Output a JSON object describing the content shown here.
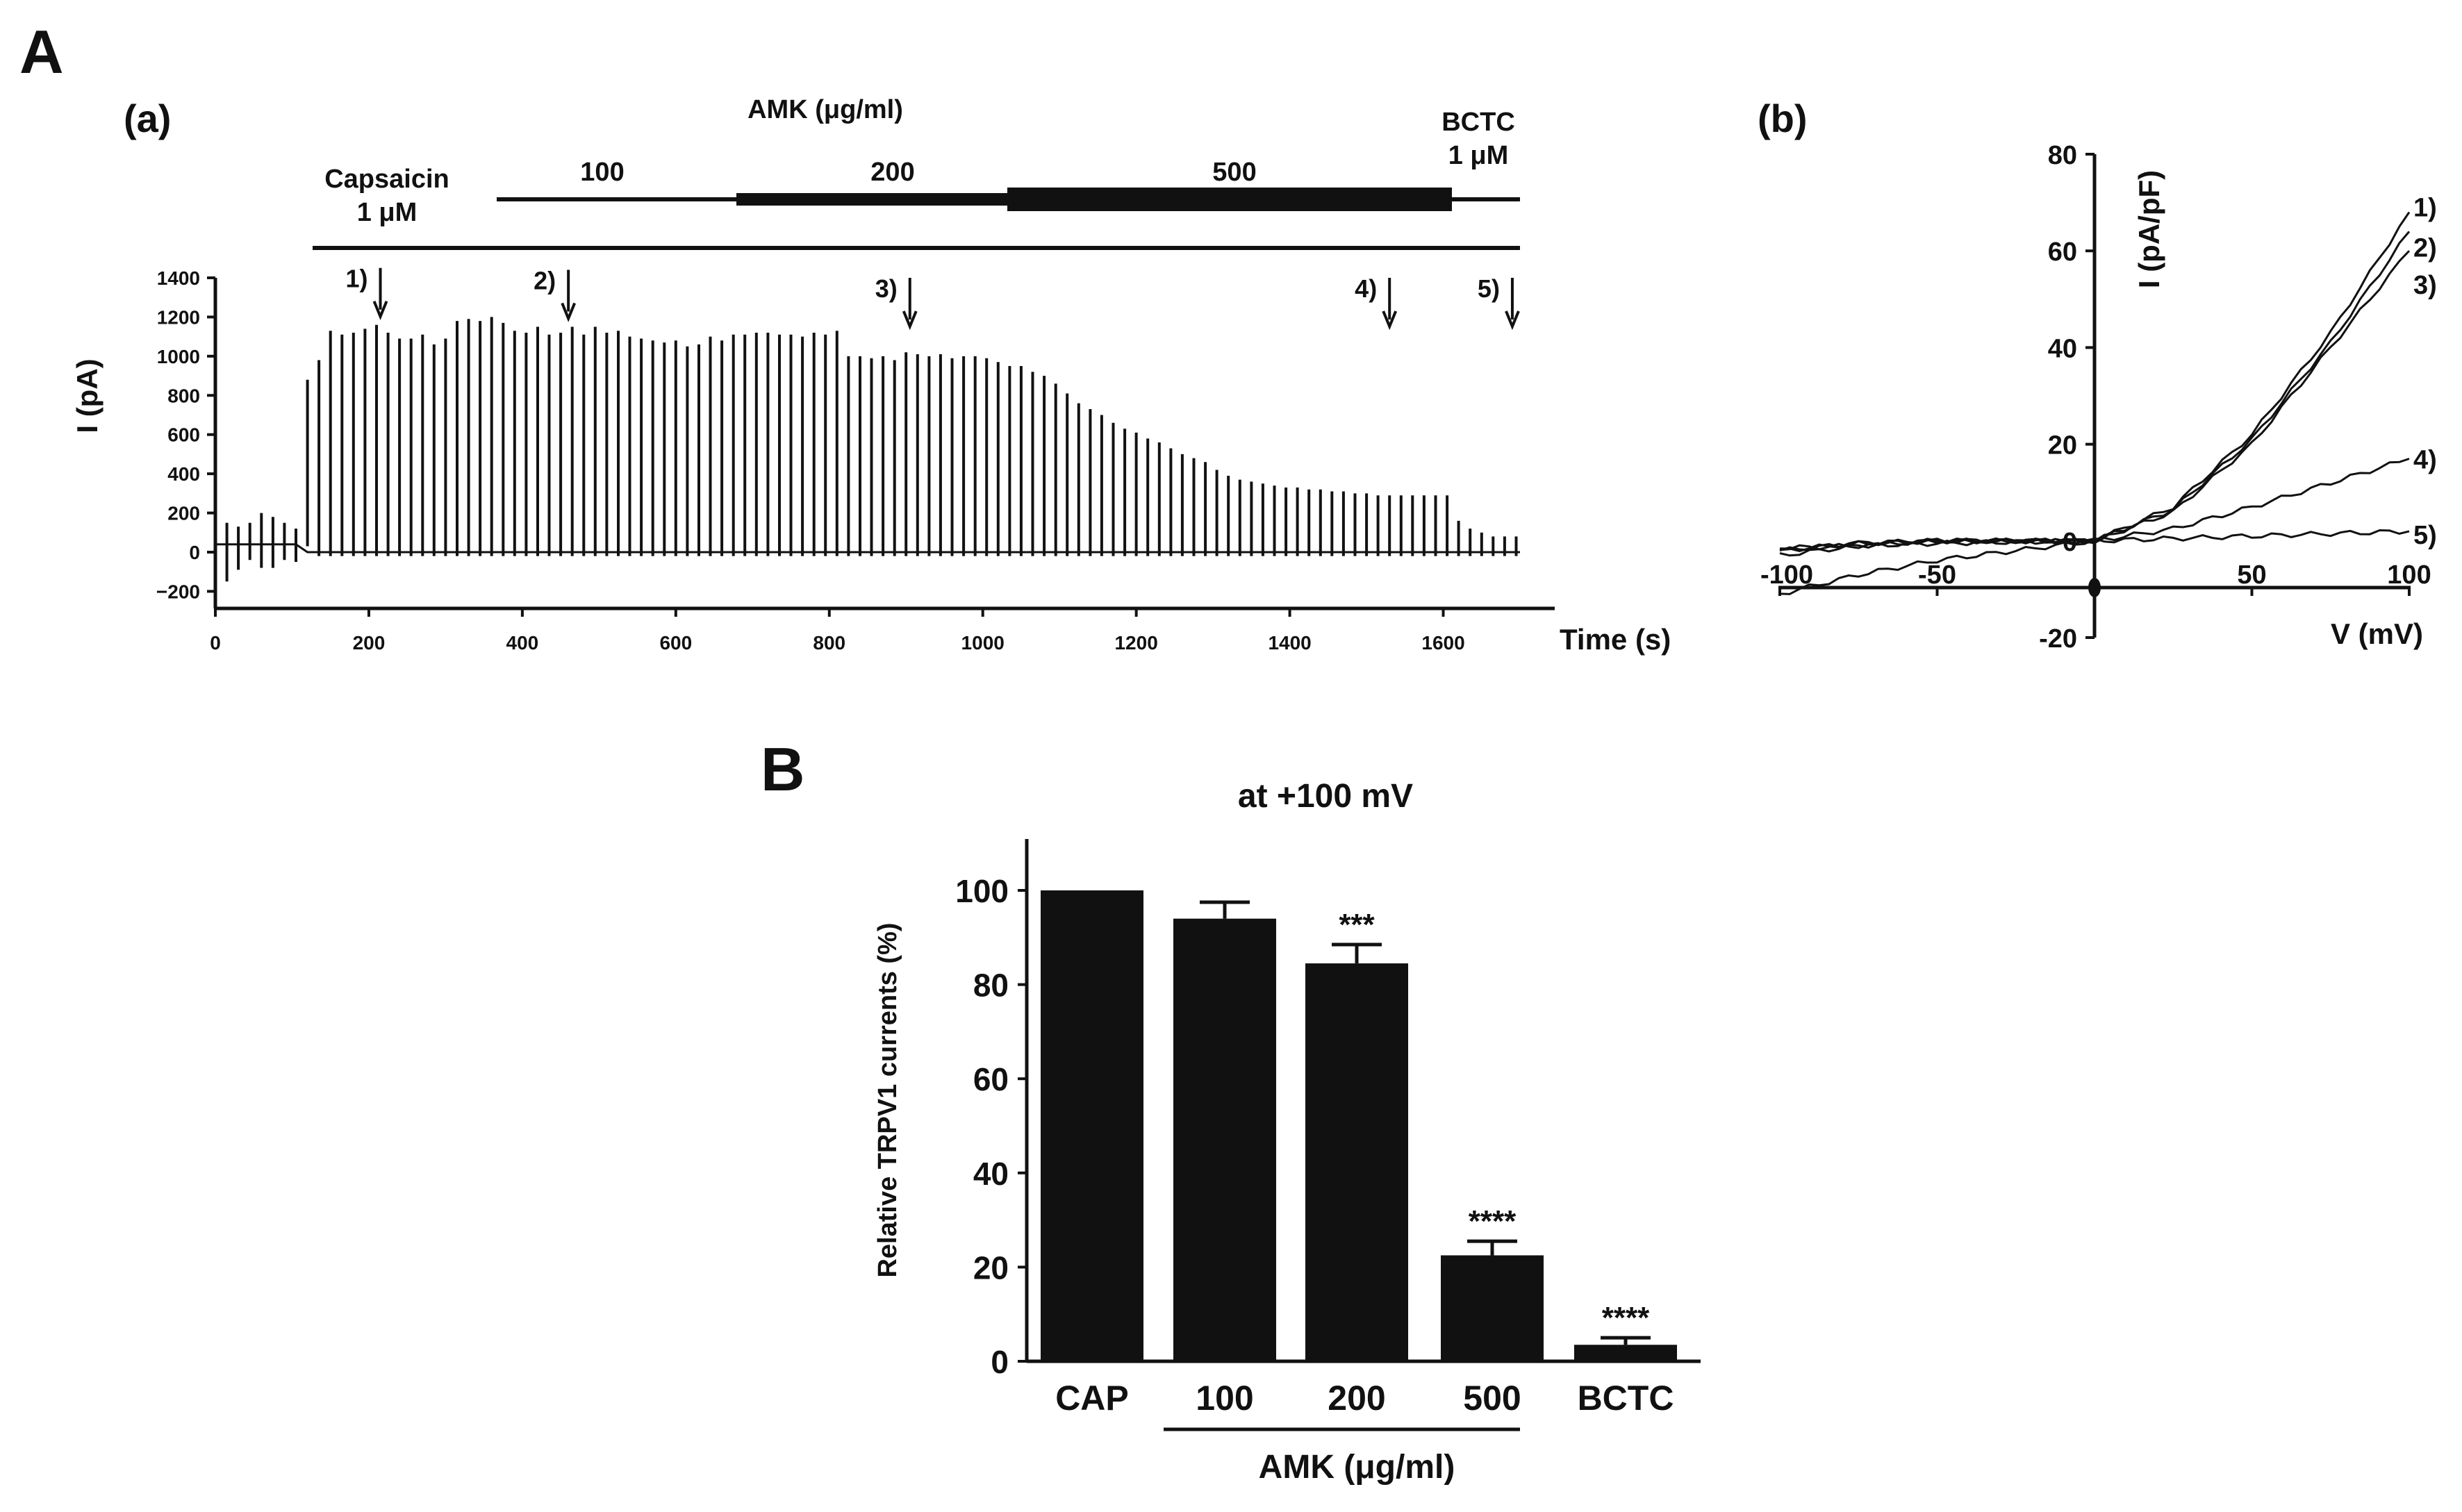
{
  "figure": {
    "panel_a_label": "A",
    "panel_b_label": "B"
  },
  "colors": {
    "ink": "#111111",
    "background": "#ffffff"
  },
  "chart_data": [
    {
      "id": "trace",
      "type": "line",
      "panel": "(a)",
      "xlabel": "Time (s)",
      "ylabel": "I (pA)",
      "xlim": [
        0,
        1750
      ],
      "ylim": [
        -300,
        1400
      ],
      "x_ticks": [
        0,
        200,
        400,
        600,
        800,
        1000,
        1200,
        1400,
        1600
      ],
      "y_ticks": [
        1400,
        1200,
        1000,
        800,
        600,
        400,
        200,
        0,
        -200
      ],
      "y_tick_labels": [
        "1400",
        "1200",
        "1000",
        "800",
        "600",
        "400",
        "200",
        "0",
        "−200"
      ],
      "treatments": {
        "capsaicin": {
          "label": "Capsaicin",
          "conc": "1 μM",
          "start": 125,
          "end": 1700
        },
        "amk_title": "AMK (μg/ml)",
        "amk": [
          {
            "label": "100",
            "start": 370,
            "end": 680
          },
          {
            "label": "200",
            "start": 680,
            "end": 1040
          },
          {
            "label": "500",
            "start": 1040,
            "end": 1615
          }
        ],
        "bctc": {
          "label": "BCTC",
          "conc": "1 μM",
          "start": 1615,
          "end": 1700
        }
      },
      "markers": [
        {
          "label": "1)",
          "time": 215
        },
        {
          "label": "2)",
          "time": 460
        },
        {
          "label": "3)",
          "time": 905
        },
        {
          "label": "4)",
          "time": 1530
        },
        {
          "label": "5)",
          "time": 1690
        }
      ],
      "series": [
        {
          "name": "ramp current peaks",
          "sample_interval_s": 15,
          "x": [
            0,
            15,
            30,
            45,
            60,
            75,
            90,
            105,
            120,
            135,
            150,
            165,
            180,
            195,
            210,
            225,
            240,
            255,
            270,
            285,
            300,
            315,
            330,
            345,
            360,
            375,
            390,
            405,
            420,
            435,
            450,
            465,
            480,
            495,
            510,
            525,
            540,
            555,
            570,
            585,
            600,
            615,
            630,
            645,
            660,
            675,
            690,
            705,
            720,
            735,
            750,
            765,
            780,
            795,
            810,
            825,
            840,
            855,
            870,
            885,
            900,
            915,
            930,
            945,
            960,
            975,
            990,
            1005,
            1020,
            1035,
            1050,
            1065,
            1080,
            1095,
            1110,
            1125,
            1140,
            1155,
            1170,
            1185,
            1200,
            1215,
            1230,
            1245,
            1260,
            1275,
            1290,
            1305,
            1320,
            1335,
            1350,
            1365,
            1380,
            1395,
            1410,
            1425,
            1440,
            1455,
            1470,
            1485,
            1500,
            1515,
            1530,
            1545,
            1560,
            1575,
            1590,
            1605,
            1620,
            1635,
            1650,
            1665,
            1680,
            1695
          ],
          "max": [
            170,
            150,
            130,
            150,
            200,
            180,
            150,
            120,
            880,
            980,
            1130,
            1110,
            1120,
            1140,
            1160,
            1120,
            1090,
            1090,
            1110,
            1060,
            1090,
            1180,
            1190,
            1180,
            1200,
            1170,
            1130,
            1120,
            1150,
            1110,
            1120,
            1150,
            1110,
            1150,
            1120,
            1130,
            1100,
            1090,
            1080,
            1070,
            1080,
            1050,
            1060,
            1100,
            1080,
            1110,
            1110,
            1120,
            1120,
            1110,
            1110,
            1100,
            1120,
            1110,
            1130,
            1000,
            1000,
            990,
            1000,
            980,
            1020,
            1010,
            1000,
            1010,
            990,
            1000,
            1000,
            990,
            970,
            950,
            950,
            920,
            900,
            860,
            810,
            760,
            730,
            700,
            660,
            630,
            610,
            580,
            560,
            530,
            500,
            480,
            460,
            420,
            390,
            370,
            360,
            350,
            340,
            330,
            330,
            320,
            320,
            310,
            310,
            300,
            300,
            290,
            290,
            290,
            290,
            290,
            290,
            290,
            160,
            120,
            100,
            80,
            80,
            80
          ],
          "min": [
            -50,
            -150,
            -90,
            -40,
            -80,
            -80,
            -40,
            -50,
            30,
            -20,
            -20,
            -20,
            -20,
            -20,
            -20,
            -20,
            -20,
            -20,
            -20,
            -20,
            -20,
            -20,
            -20,
            -20,
            -20,
            -20,
            -20,
            -20,
            -20,
            -20,
            -20,
            -20,
            -20,
            -20,
            -20,
            -20,
            -20,
            -20,
            -20,
            -20,
            -20,
            -20,
            -20,
            -20,
            -20,
            -20,
            -20,
            -20,
            -20,
            -20,
            -20,
            -20,
            -20,
            -20,
            -20,
            -20,
            -20,
            -20,
            -20,
            -20,
            -20,
            -20,
            -20,
            -20,
            -20,
            -20,
            -20,
            -20,
            -20,
            -20,
            -20,
            -20,
            -20,
            -20,
            -20,
            -20,
            -20,
            -20,
            -20,
            -20,
            -20,
            -20,
            -20,
            -20,
            -20,
            -20,
            -20,
            -20,
            -20,
            -20,
            -20,
            -20,
            -20,
            -20,
            -20,
            -20,
            -20,
            -20,
            -20,
            -20,
            -20,
            -20,
            -20,
            -20,
            -20,
            -20,
            -20,
            -20,
            -20,
            -20,
            -20,
            -20,
            -20,
            -20
          ]
        }
      ]
    },
    {
      "id": "iv",
      "type": "line",
      "panel": "(b)",
      "xlabel": "V (mV)",
      "ylabel": "I (pA/pF)",
      "xlim": [
        -100,
        100
      ],
      "ylim": [
        -20,
        80
      ],
      "x_ticks": [
        -100,
        -50,
        50,
        100
      ],
      "x_tick_labels": [
        "-100",
        "-50",
        "50",
        "100"
      ],
      "y_ticks": [
        80,
        60,
        40,
        20,
        0,
        -20
      ],
      "y_tick_labels": [
        "80",
        "60",
        "40",
        "20",
        "0",
        "-20"
      ],
      "series": [
        {
          "name": "1)",
          "x": [
            -100,
            -75,
            -50,
            -25,
            0,
            25,
            50,
            75,
            100
          ],
          "y": [
            -2,
            -0.5,
            0,
            0,
            0,
            7,
            22,
            43,
            68
          ]
        },
        {
          "name": "2)",
          "x": [
            -100,
            -75,
            -50,
            -25,
            0,
            25,
            50,
            75,
            100
          ],
          "y": [
            -2,
            -0.5,
            0,
            0,
            0,
            6.5,
            21,
            41,
            64
          ]
        },
        {
          "name": "3)",
          "x": [
            -100,
            -75,
            -50,
            -25,
            0,
            25,
            50,
            75,
            100
          ],
          "y": [
            -3,
            -1,
            0,
            0,
            0,
            6,
            20,
            40,
            60
          ]
        },
        {
          "name": "4)",
          "x": [
            -100,
            -75,
            -50,
            -25,
            0,
            25,
            50,
            75,
            100
          ],
          "y": [
            -11,
            -7,
            -4,
            -2,
            0,
            2.5,
            7,
            12,
            17
          ]
        },
        {
          "name": "5)",
          "x": [
            -100,
            -75,
            -50,
            -25,
            0,
            25,
            50,
            75,
            100
          ],
          "y": [
            -1.5,
            -1,
            -0.5,
            -0.2,
            0,
            0.5,
            1,
            1.5,
            2
          ]
        }
      ]
    },
    {
      "id": "bars",
      "type": "bar",
      "title": "at +100 mV",
      "ylabel": "Relative TRPV1 currents (%)",
      "xlabel": "AMK (μg/ml)",
      "group_label": "AMK (μg/ml)",
      "categories": [
        "CAP",
        "100",
        "200",
        "500",
        "BCTC"
      ],
      "values": [
        100,
        94,
        84.5,
        22.5,
        3.5
      ],
      "errors": [
        0,
        3.5,
        4,
        3,
        1.5
      ],
      "significance": [
        "",
        "",
        "***",
        "****",
        "****"
      ],
      "ylim": [
        0,
        110
      ],
      "y_ticks": [
        0,
        20,
        40,
        60,
        80,
        100
      ]
    }
  ]
}
